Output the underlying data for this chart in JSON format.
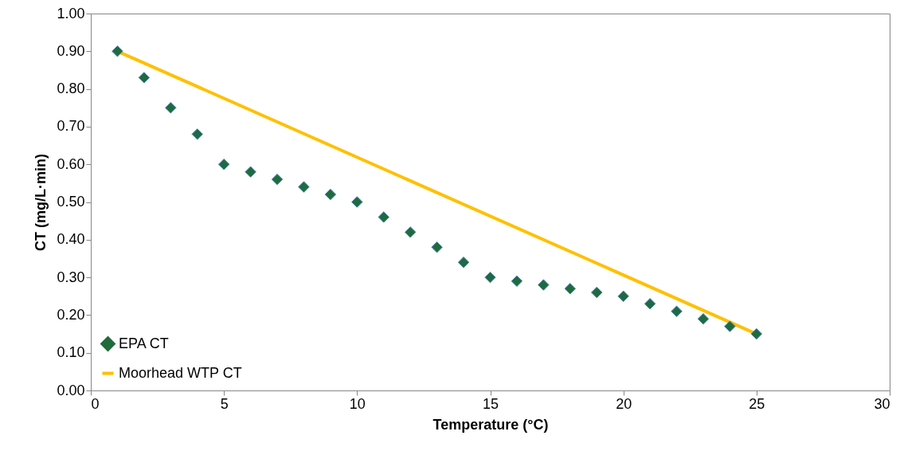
{
  "chart_data": {
    "type": "scatter",
    "xlabel": "Temperature (°C)",
    "ylabel": "CT (mg/L·min)",
    "xlim": [
      0,
      30
    ],
    "xticks": [
      0,
      5,
      10,
      15,
      20,
      25,
      30
    ],
    "ylim": [
      0,
      1
    ],
    "yticks": [
      {
        "value": 0,
        "label": "0.00"
      },
      {
        "value": 0.1,
        "label": "0.10"
      },
      {
        "value": 0.2,
        "label": "0.20"
      },
      {
        "value": 0.3,
        "label": "0.30"
      },
      {
        "value": 0.4,
        "label": "0.40"
      },
      {
        "value": 0.5,
        "label": "0.50"
      },
      {
        "value": 0.6,
        "label": "0.60"
      },
      {
        "value": 0.7,
        "label": "0.70"
      },
      {
        "value": 0.8,
        "label": "0.80"
      },
      {
        "value": 0.9,
        "label": "0.90"
      },
      {
        "value": 1,
        "label": "1.00"
      }
    ],
    "grid": false,
    "legend": "bottom left",
    "series": [
      {
        "name": "EPA CT",
        "type": "scatter",
        "marker": "diamond",
        "color": "#1e6b3c",
        "x": [
          1,
          2,
          3,
          4,
          5,
          6,
          7,
          8,
          9,
          10,
          11,
          12,
          13,
          14,
          15,
          16,
          17,
          18,
          19,
          20,
          21,
          22,
          23,
          24,
          25
        ],
        "values": [
          0.9,
          0.83,
          0.75,
          0.68,
          0.6,
          0.58,
          0.56,
          0.54,
          0.52,
          0.5,
          0.46,
          0.42,
          0.38,
          0.34,
          0.3,
          0.29,
          0.28,
          0.27,
          0.26,
          0.25,
          0.23,
          0.21,
          0.19,
          0.17,
          0.15
        ]
      },
      {
        "name": "Moorhead WTP CT",
        "type": "line",
        "line_style": "solid",
        "color": "#ffc000",
        "x": [
          1,
          25
        ],
        "values": [
          0.9,
          0.15
        ]
      }
    ]
  }
}
